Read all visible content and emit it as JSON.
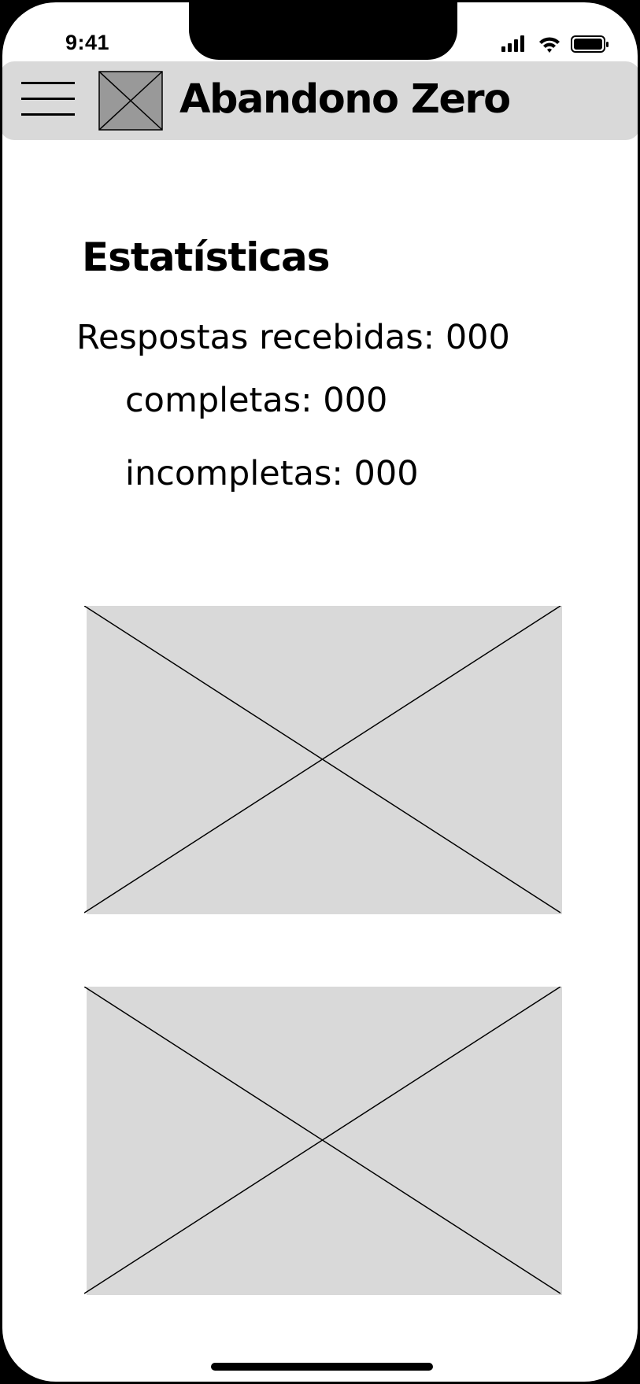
{
  "status_bar": {
    "time": "9:41",
    "icons": [
      "signal-icon",
      "wifi-icon",
      "battery-icon"
    ]
  },
  "header": {
    "menu_icon": "hamburger-menu-icon",
    "logo": "image-placeholder-icon",
    "title": "Abandono Zero",
    "background": "#d9d9d9"
  },
  "stats": {
    "heading": "Estatísticas",
    "responses_total": "Respostas recebidas: 000",
    "responses_complete": "completas: 000",
    "responses_incomplete": "incompletas: 000"
  },
  "placeholders": [
    {
      "kind": "image-placeholder",
      "fill": "#d9d9d9"
    },
    {
      "kind": "image-placeholder",
      "fill": "#d9d9d9"
    }
  ]
}
